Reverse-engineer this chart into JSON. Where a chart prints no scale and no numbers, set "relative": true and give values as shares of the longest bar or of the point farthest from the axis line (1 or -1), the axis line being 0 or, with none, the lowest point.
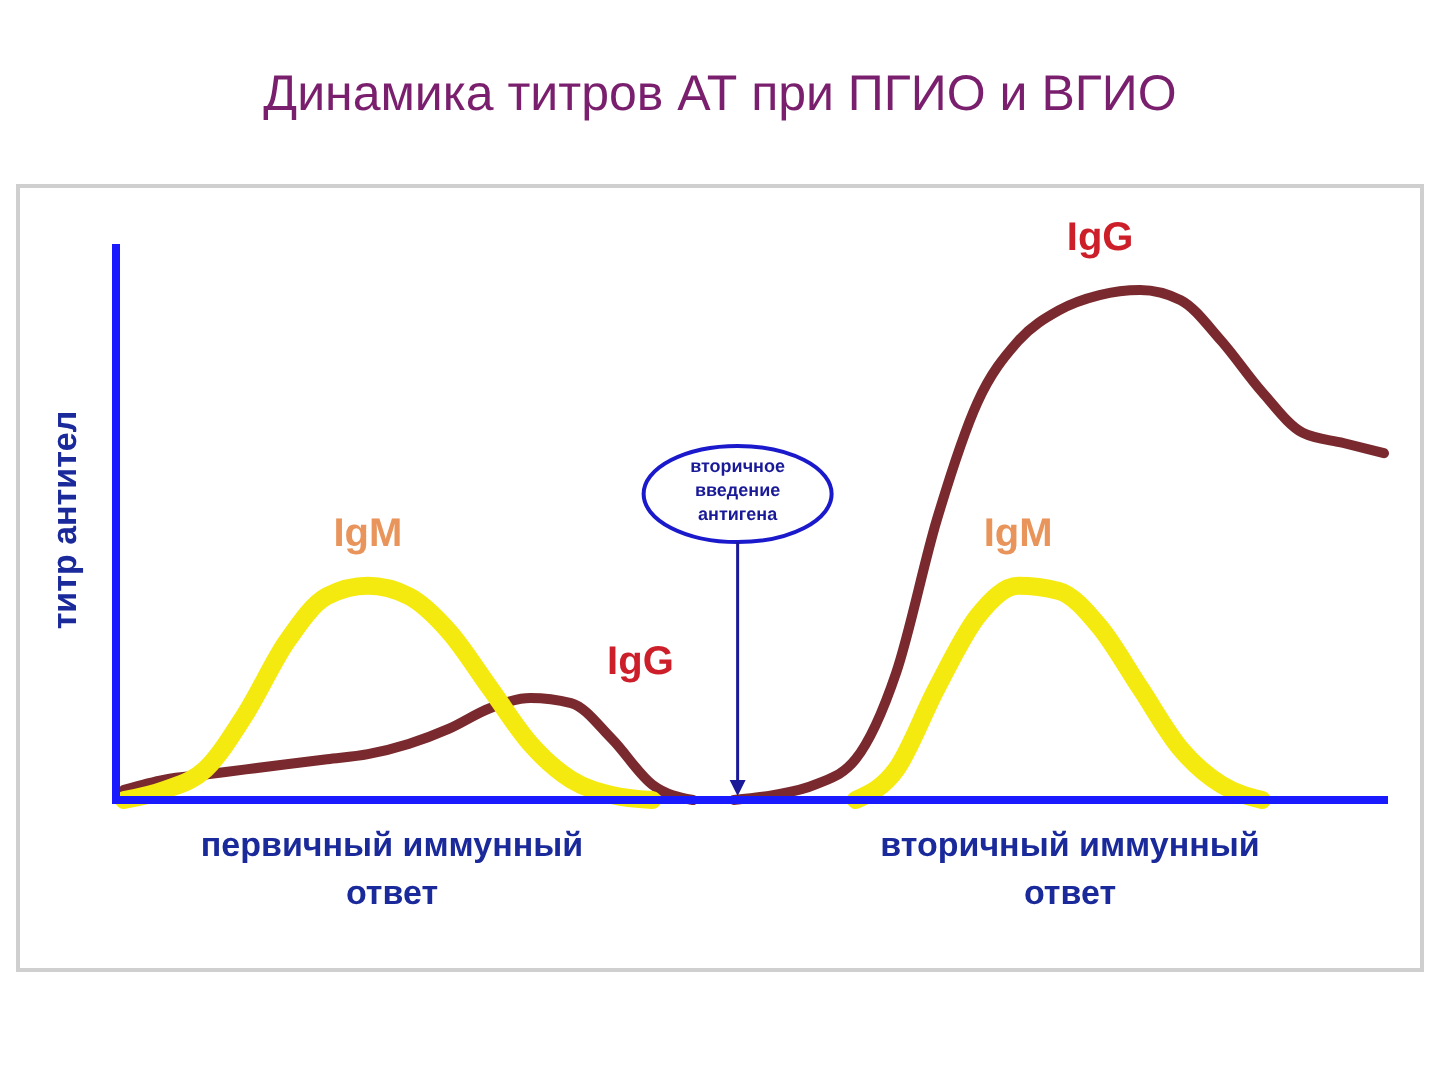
{
  "chart_data": {
    "type": "line",
    "relative": true,
    "title": "Динамика титров АТ при ПГИО и ВГИО",
    "ylabel": "титр антител",
    "categories": [
      null,
      null,
      null,
      null,
      null,
      null,
      null,
      null,
      null,
      null,
      null,
      null,
      null,
      null,
      null,
      null,
      null,
      null,
      null,
      null,
      null,
      null,
      null,
      null,
      null,
      null,
      null,
      null,
      null,
      null,
      null,
      null
    ],
    "series": [
      {
        "name": "IgG",
        "color": "#7a2a2e",
        "values": [
          0.02,
          0.04,
          0.05,
          0.06,
          0.07,
          0.08,
          0.09,
          0.11,
          0.14,
          0.18,
          0.2,
          0.19,
          0.12,
          0.03,
          0.0,
          null,
          null,
          null,
          null,
          null,
          null,
          null,
          null,
          null,
          null,
          null,
          null,
          null,
          null,
          null,
          null,
          null
        ]
      },
      {
        "name": "IgM",
        "color": "#f5ea10",
        "values": [
          0.0,
          0.02,
          0.06,
          0.17,
          0.31,
          0.4,
          0.42,
          0.4,
          0.33,
          0.22,
          0.11,
          0.04,
          0.01,
          0.0,
          null,
          null,
          null,
          null,
          null,
          null,
          null,
          null,
          null,
          null,
          null,
          null,
          null,
          null,
          null,
          null,
          null,
          null
        ]
      },
      {
        "name": "IgG",
        "color": "#7a2a2e",
        "values": [
          null,
          null,
          null,
          null,
          null,
          null,
          null,
          null,
          null,
          null,
          null,
          null,
          null,
          null,
          null,
          0.0,
          0.01,
          0.03,
          0.08,
          0.25,
          0.55,
          0.78,
          0.9,
          0.96,
          0.99,
          1.0,
          0.98,
          0.9,
          0.8,
          0.72,
          0.7,
          0.68
        ]
      },
      {
        "name": "IgM",
        "color": "#f5ea10",
        "values": [
          null,
          null,
          null,
          null,
          null,
          null,
          null,
          null,
          null,
          null,
          null,
          null,
          null,
          null,
          null,
          null,
          null,
          null,
          0.0,
          0.06,
          0.22,
          0.36,
          0.42,
          0.41,
          0.34,
          0.22,
          0.1,
          0.03,
          0.0,
          null,
          null,
          null
        ]
      }
    ],
    "annotations": [
      "вторичное введение антигена",
      "первичный иммунный ответ",
      "вторичный иммунный ответ"
    ]
  }
}
